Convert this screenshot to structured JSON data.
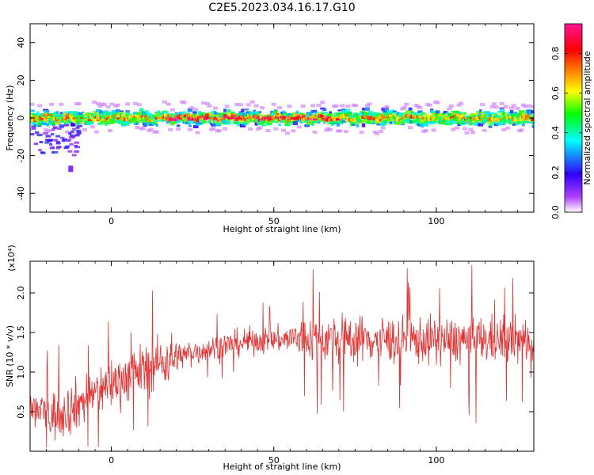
{
  "figure": {
    "title": "C2E5.2023.034.16.17.G10"
  },
  "chart_data": [
    {
      "type": "heatmap",
      "xlabel": "Height of straight line (km)",
      "ylabel": "Frequency (Hz)",
      "xlim": [
        -25,
        130
      ],
      "ylim": [
        -50,
        50
      ],
      "x_ticks": [
        0,
        50,
        100
      ],
      "y_ticks": [
        -40,
        -20,
        0,
        20,
        40
      ],
      "colorbar": {
        "label": "Normalized spectral amplitude",
        "range": [
          0.0,
          0.95
        ],
        "ticks": [
          0.0,
          0.2,
          0.4,
          0.6,
          0.8
        ],
        "colors": [
          "#ffffff",
          "#7f00ff",
          "#0000ff",
          "#00ffff",
          "#00ff00",
          "#ffff00",
          "#ff8000",
          "#ff0000",
          "#ff1493"
        ]
      },
      "band": {
        "center_hz": 0,
        "half_width_hz": 5,
        "core_half_width_hz": 2,
        "outlier": {
          "x_km": -12.5,
          "y_hz": -27
        }
      }
    },
    {
      "type": "line",
      "xlabel": "Height of straight line (km)",
      "ylabel": "SNR (10 * v/v)",
      "y_scale_label": "(x10⁴)",
      "xlim": [
        -25,
        130
      ],
      "ylim": [
        0.0,
        2.4
      ],
      "x_ticks": [
        0,
        50,
        100
      ],
      "y_ticks": [
        0.5,
        1.0,
        1.5,
        2.0
      ],
      "color": "#e83030",
      "trend": [
        {
          "x": -25,
          "y": 0.55
        },
        {
          "x": -18,
          "y": 0.45
        },
        {
          "x": -12,
          "y": 0.55
        },
        {
          "x": -5,
          "y": 0.75
        },
        {
          "x": 5,
          "y": 0.95
        },
        {
          "x": 15,
          "y": 1.12
        },
        {
          "x": 25,
          "y": 1.25
        },
        {
          "x": 35,
          "y": 1.34
        },
        {
          "x": 45,
          "y": 1.4
        },
        {
          "x": 55,
          "y": 1.42
        },
        {
          "x": 65,
          "y": 1.42
        },
        {
          "x": 75,
          "y": 1.42
        },
        {
          "x": 85,
          "y": 1.41
        },
        {
          "x": 95,
          "y": 1.4
        },
        {
          "x": 105,
          "y": 1.4
        },
        {
          "x": 115,
          "y": 1.4
        },
        {
          "x": 130,
          "y": 1.4
        }
      ]
    }
  ]
}
